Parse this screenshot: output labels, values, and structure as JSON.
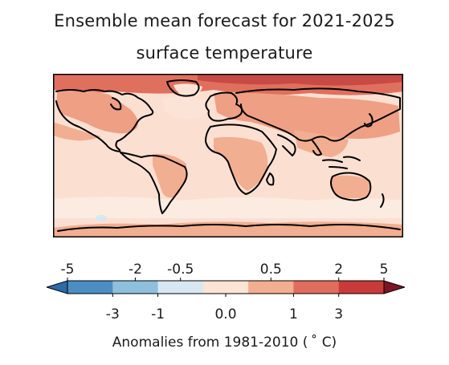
{
  "title": {
    "line1": "Ensemble mean forecast for 2021-2025",
    "line2": "surface temperature"
  },
  "map": {
    "base_color": "#fbe0d2",
    "coastline_color": "#000000"
  },
  "colorbar": {
    "label": "Anomalies from 1981-2010 ( ˚ C)",
    "ticks_top": [
      "-5",
      "-2",
      "-0.5",
      "0.5",
      "2",
      "5"
    ],
    "ticks_bottom": [
      "-3",
      "-1",
      "0.0",
      "1",
      "3"
    ],
    "colors": [
      "#2d6aa8",
      "#4b8ec4",
      "#8ec0de",
      "#d8e7f1",
      "#fbe3d5",
      "#f2ae91",
      "#e06d5d",
      "#c93a3b",
      "#7c1423"
    ],
    "extend": "both"
  }
}
